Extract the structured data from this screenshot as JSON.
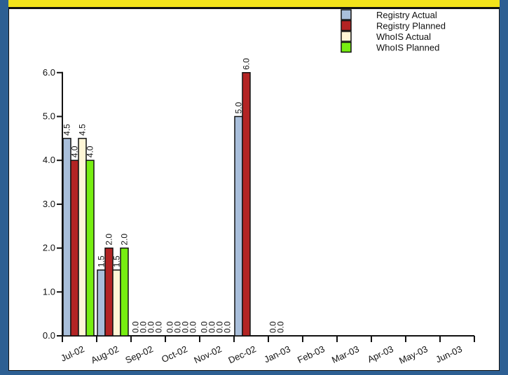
{
  "colors": {
    "frame": "#2d5f93",
    "title_strip": "#f2e21a",
    "panel": "#ffffff",
    "registry_actual": "#a9bfdb",
    "registry_planned": "#b32424",
    "whois_actual": "#fff6d6",
    "whois_planned": "#77ee11"
  },
  "chart_data": {
    "type": "bar",
    "title": "",
    "xlabel": "",
    "ylabel": "",
    "ylim": [
      0,
      6
    ],
    "yticks": [
      "0.0",
      "1.0",
      "2.0",
      "3.0",
      "4.0",
      "5.0",
      "6.0"
    ],
    "grid": false,
    "legend_position": "top-right",
    "categories": [
      "Jul-02",
      "Aug-02",
      "Sep-02",
      "Oct-02",
      "Nov-02",
      "Dec-02",
      "Jan-03",
      "Feb-03",
      "Mar-03",
      "Apr-03",
      "May-03",
      "Jun-03"
    ],
    "series": [
      {
        "name": "Registry Actual",
        "color": "#a9bfdb",
        "values": [
          4.5,
          1.5,
          0.0,
          0.0,
          0.0,
          5.0,
          0.0,
          null,
          null,
          null,
          null,
          null
        ]
      },
      {
        "name": "Registry Planned",
        "color": "#b32424",
        "values": [
          4.0,
          2.0,
          0.0,
          0.0,
          0.0,
          6.0,
          0.0,
          null,
          null,
          null,
          null,
          null
        ]
      },
      {
        "name": "WhoIS Actual",
        "color": "#fff6d6",
        "values": [
          4.5,
          1.5,
          0.0,
          0.0,
          0.0,
          null,
          null,
          null,
          null,
          null,
          null,
          null
        ]
      },
      {
        "name": "WhoIS Planned",
        "color": "#77ee11",
        "values": [
          4.0,
          2.0,
          0.0,
          0.0,
          0.0,
          null,
          null,
          null,
          null,
          null,
          null,
          null
        ]
      }
    ]
  }
}
